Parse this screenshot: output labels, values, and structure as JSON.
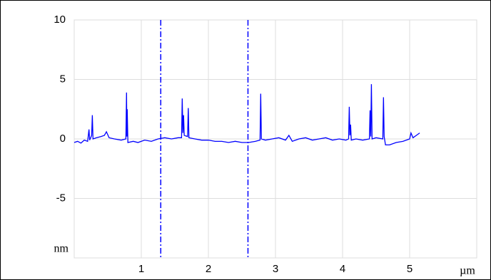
{
  "chart_data": {
    "type": "line",
    "x_label": "µm",
    "y_label": "nm",
    "x": [
      0.0,
      0.05,
      0.1,
      0.15,
      0.2,
      0.22,
      0.23,
      0.26,
      0.27,
      0.28,
      0.33,
      0.4,
      0.45,
      0.48,
      0.52,
      0.6,
      0.7,
      0.77,
      0.78,
      0.785,
      0.79,
      0.8,
      0.88,
      0.95,
      1.05,
      1.15,
      1.25,
      1.35,
      1.45,
      1.55,
      1.6,
      1.61,
      1.62,
      1.63,
      1.64,
      1.69,
      1.7,
      1.71,
      1.8,
      1.9,
      2.0,
      2.1,
      2.2,
      2.3,
      2.4,
      2.5,
      2.6,
      2.7,
      2.77,
      2.78,
      2.79,
      2.85,
      2.95,
      3.05,
      3.15,
      3.2,
      3.25,
      3.35,
      3.45,
      3.55,
      3.65,
      3.75,
      3.85,
      3.95,
      4.05,
      4.09,
      4.1,
      4.11,
      4.12,
      4.13,
      4.2,
      4.3,
      4.4,
      4.41,
      4.42,
      4.43,
      4.44,
      4.5,
      4.6,
      4.61,
      4.62,
      4.64,
      4.7,
      4.8,
      4.9,
      5.0,
      5.02,
      5.05,
      5.1,
      5.15
    ],
    "series": [
      {
        "color": "#0000ff",
        "values": [
          -0.3,
          -0.2,
          -0.35,
          -0.1,
          -0.2,
          0.8,
          -0.1,
          0.3,
          2.0,
          0.0,
          0.1,
          0.2,
          0.3,
          0.6,
          0.1,
          0.0,
          -0.1,
          0.0,
          3.9,
          0.2,
          2.5,
          -0.3,
          -0.2,
          -0.3,
          -0.1,
          -0.2,
          0.0,
          0.1,
          0.0,
          0.1,
          0.1,
          3.4,
          0.5,
          2.0,
          0.3,
          0.2,
          2.6,
          0.1,
          0.0,
          -0.1,
          -0.1,
          -0.2,
          -0.2,
          -0.3,
          -0.2,
          -0.3,
          -0.3,
          -0.2,
          -0.1,
          3.8,
          0.0,
          -0.1,
          0.0,
          0.1,
          -0.1,
          0.3,
          -0.2,
          0.0,
          0.1,
          -0.1,
          0.0,
          0.1,
          -0.1,
          0.0,
          -0.1,
          0.0,
          2.7,
          0.3,
          1.2,
          -0.1,
          0.0,
          -0.1,
          0.0,
          2.4,
          0.2,
          4.6,
          0.0,
          0.1,
          0.0,
          3.5,
          0.2,
          -0.5,
          -0.5,
          -0.3,
          -0.2,
          0.0,
          0.5,
          0.1,
          0.3,
          0.5
        ]
      }
    ],
    "markers": [
      1.29,
      2.59
    ],
    "marker_color": "#0000ff",
    "xlim": [
      0,
      6
    ],
    "xticks": [
      1,
      2,
      3,
      4,
      5
    ],
    "ylim": [
      -10,
      10
    ],
    "yticks": [
      10,
      5,
      0,
      -5
    ],
    "grid": true
  }
}
